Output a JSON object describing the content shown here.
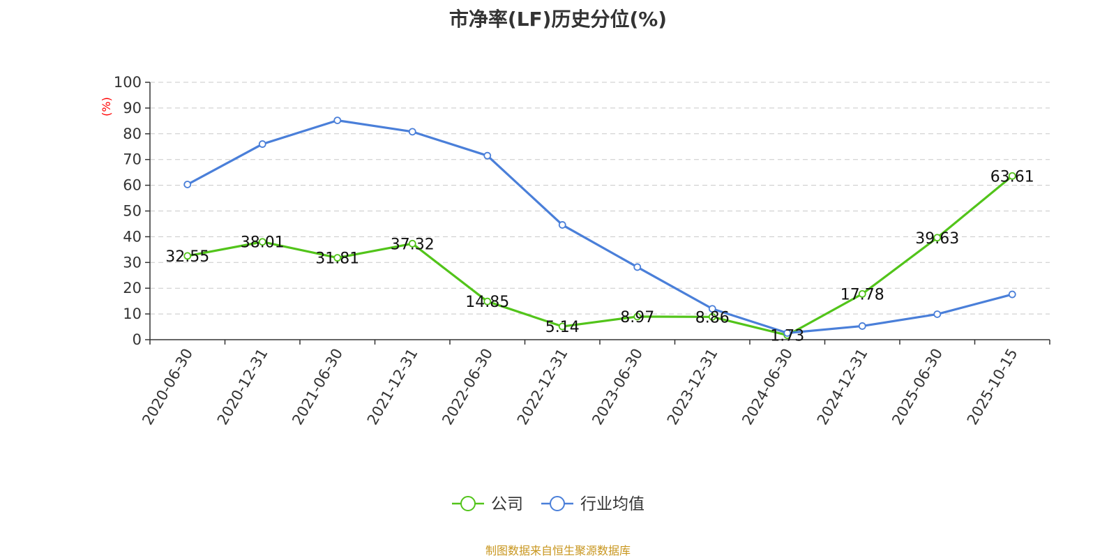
{
  "chart_data": {
    "type": "line",
    "title": "市净率(LF)历史分位(%)",
    "ylabel": "(%)",
    "ylim": [
      0,
      100
    ],
    "yticks": [
      0,
      10,
      20,
      30,
      40,
      50,
      60,
      70,
      80,
      90,
      100
    ],
    "grid": true,
    "legend_position": "bottom",
    "categories": [
      "2020-06-30",
      "2020-12-31",
      "2021-06-30",
      "2021-12-31",
      "2022-06-30",
      "2022-12-31",
      "2023-06-30",
      "2023-12-31",
      "2024-06-30",
      "2024-12-31",
      "2025-06-30",
      "2025-10-15"
    ],
    "series": [
      {
        "name": "公司",
        "color": "#52c41a",
        "values": [
          32.55,
          38.01,
          31.81,
          37.32,
          14.85,
          5.14,
          8.97,
          8.86,
          1.73,
          17.78,
          39.63,
          63.61
        ],
        "labels": [
          "32.55",
          "38.01",
          "31.81",
          "37.32",
          "14.85",
          "5.14",
          "8.97",
          "8.86",
          "1.73",
          "17.78",
          "39.63",
          "63.61"
        ]
      },
      {
        "name": "行业均值",
        "color": "#4a7fd9",
        "values": [
          60.3,
          76.0,
          85.2,
          80.8,
          71.5,
          44.6,
          28.2,
          12.0,
          2.6,
          5.3,
          9.9,
          17.6
        ]
      }
    ],
    "source_note": "制图数据来自恒生聚源数据库"
  }
}
